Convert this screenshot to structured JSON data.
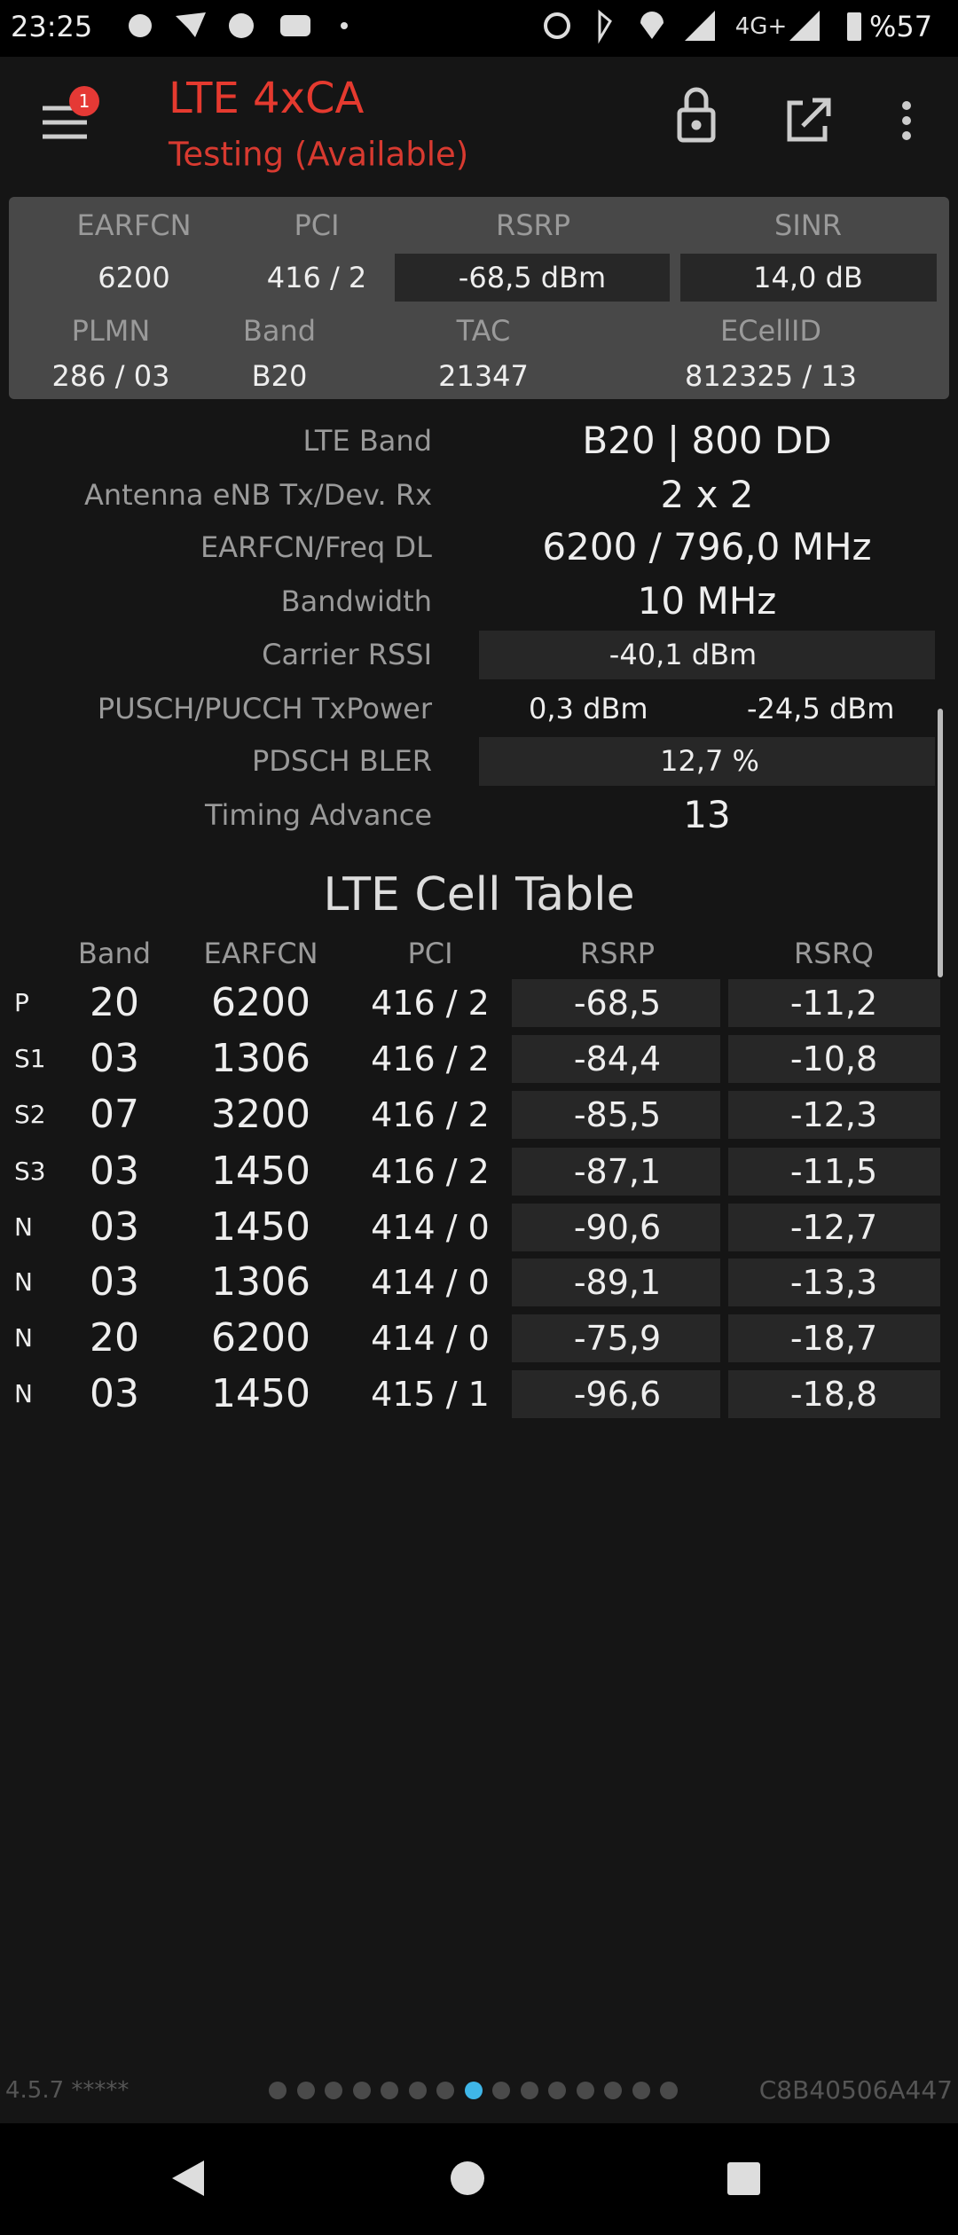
{
  "status_bar": {
    "time": "23:25",
    "network": "4G+",
    "battery": "%57"
  },
  "toolbar": {
    "badge": "1",
    "title": "LTE 4xCA",
    "subtitle": "Testing (Available)"
  },
  "summary": {
    "headers": [
      "EARFCN",
      "PCI",
      "RSRP",
      "SINR"
    ],
    "values": [
      "6200",
      "416 / 2",
      "-68,5 dBm",
      "14,0 dB"
    ],
    "headers2": [
      "PLMN",
      "Band",
      "TAC",
      "ECellID"
    ],
    "values2": [
      "286 / 03",
      "B20",
      "21347",
      "812325 / 13"
    ]
  },
  "details": [
    {
      "label": "LTE Band",
      "value": "B20 | 800 DD"
    },
    {
      "label": "Antenna eNB Tx/Dev. Rx",
      "value": "2 x 2"
    },
    {
      "label": "EARFCN/Freq DL",
      "value": "6200 / 796,0 MHz"
    },
    {
      "label": "Bandwidth",
      "value": "10 MHz"
    },
    {
      "label": "Carrier RSSI",
      "value": "-40,1 dBm"
    },
    {
      "label": "PUSCH/PUCCH TxPower",
      "value": "0,3 dBm",
      "value2": "-24,5 dBm"
    },
    {
      "label": "PDSCH BLER",
      "value": "12,7 %"
    },
    {
      "label": "Timing Advance",
      "value": "13"
    }
  ],
  "cell_table": {
    "title": "LTE Cell Table",
    "columns": [
      "Band",
      "EARFCN",
      "PCI",
      "RSRP",
      "RSRQ"
    ],
    "rows": [
      [
        "P",
        "20",
        "6200",
        "416 / 2",
        "-68,5",
        "-11,2"
      ],
      [
        "S1",
        "03",
        "1306",
        "416 / 2",
        "-84,4",
        "-10,8"
      ],
      [
        "S2",
        "07",
        "3200",
        "416 / 2",
        "-85,5",
        "-12,3"
      ],
      [
        "S3",
        "03",
        "1450",
        "416 / 2",
        "-87,1",
        "-11,5"
      ],
      [
        "N",
        "03",
        "1450",
        "414 / 0",
        "-90,6",
        "-12,7"
      ],
      [
        "N",
        "03",
        "1306",
        "414 / 0",
        "-89,1",
        "-13,3"
      ],
      [
        "N",
        "20",
        "6200",
        "414 / 0",
        "-75,9",
        "-18,7"
      ],
      [
        "N",
        "03",
        "1450",
        "415 / 1",
        "-96,6",
        "-18,8"
      ]
    ]
  },
  "footer": {
    "version": "4.5.7 *****",
    "device_id": "C8B40506A447"
  }
}
